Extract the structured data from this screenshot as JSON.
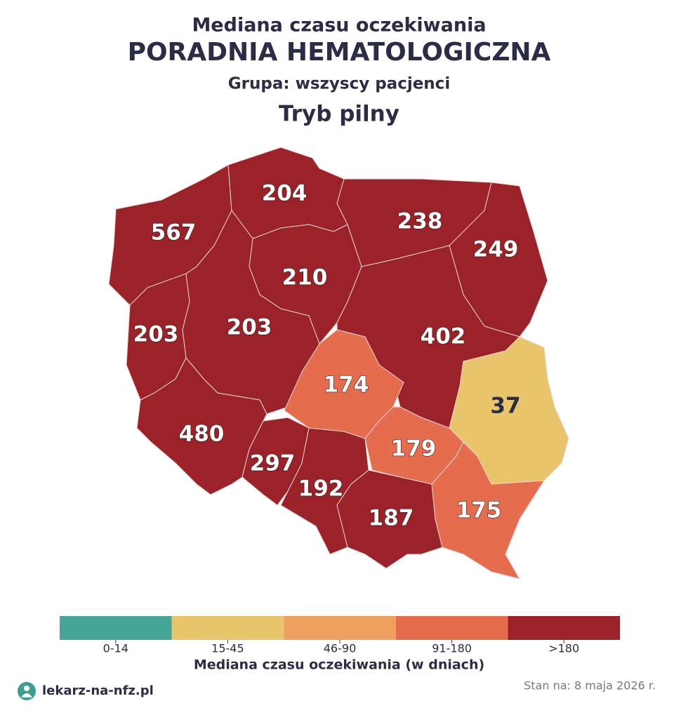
{
  "header": {
    "line1": "Mediana czasu oczekiwania",
    "title": "PORADNIA HEMATOLOGICZNA",
    "group": "Grupa: wszyscy pacjenci",
    "mode": "Tryb pilny"
  },
  "regions": [
    {
      "value": 567,
      "color": "#9b2228"
    },
    {
      "value": 204,
      "color": "#9b2228"
    },
    {
      "value": 238,
      "color": "#9b2228"
    },
    {
      "value": 249,
      "color": "#9b2228"
    },
    {
      "value": 210,
      "color": "#9b2228"
    },
    {
      "value": 203,
      "color": "#9b2228"
    },
    {
      "value": 203,
      "color": "#9b2228"
    },
    {
      "value": 402,
      "color": "#9b2228"
    },
    {
      "value": 174,
      "color": "#e66c4e"
    },
    {
      "value": 37,
      "color": "#e8c46a"
    },
    {
      "value": 480,
      "color": "#9b2228"
    },
    {
      "value": 297,
      "color": "#9b2228"
    },
    {
      "value": 192,
      "color": "#9b2228"
    },
    {
      "value": 179,
      "color": "#e66c4e"
    },
    {
      "value": 187,
      "color": "#9b2228"
    },
    {
      "value": 175,
      "color": "#e66c4e"
    }
  ],
  "legend": {
    "title": "Mediana czasu oczekiwania (w dniach)",
    "bins": [
      {
        "label": "0-14",
        "color": "#45a596"
      },
      {
        "label": "15-45",
        "color": "#e8c46a"
      },
      {
        "label": "46-90",
        "color": "#f0a05e"
      },
      {
        "label": "91-180",
        "color": "#e66c4e"
      },
      {
        "label": ">180",
        "color": "#9b2228"
      }
    ]
  },
  "footer": {
    "brand": "lekarz-na-nfz.pl",
    "date": "Stan na: 8 maja 2026 r."
  }
}
